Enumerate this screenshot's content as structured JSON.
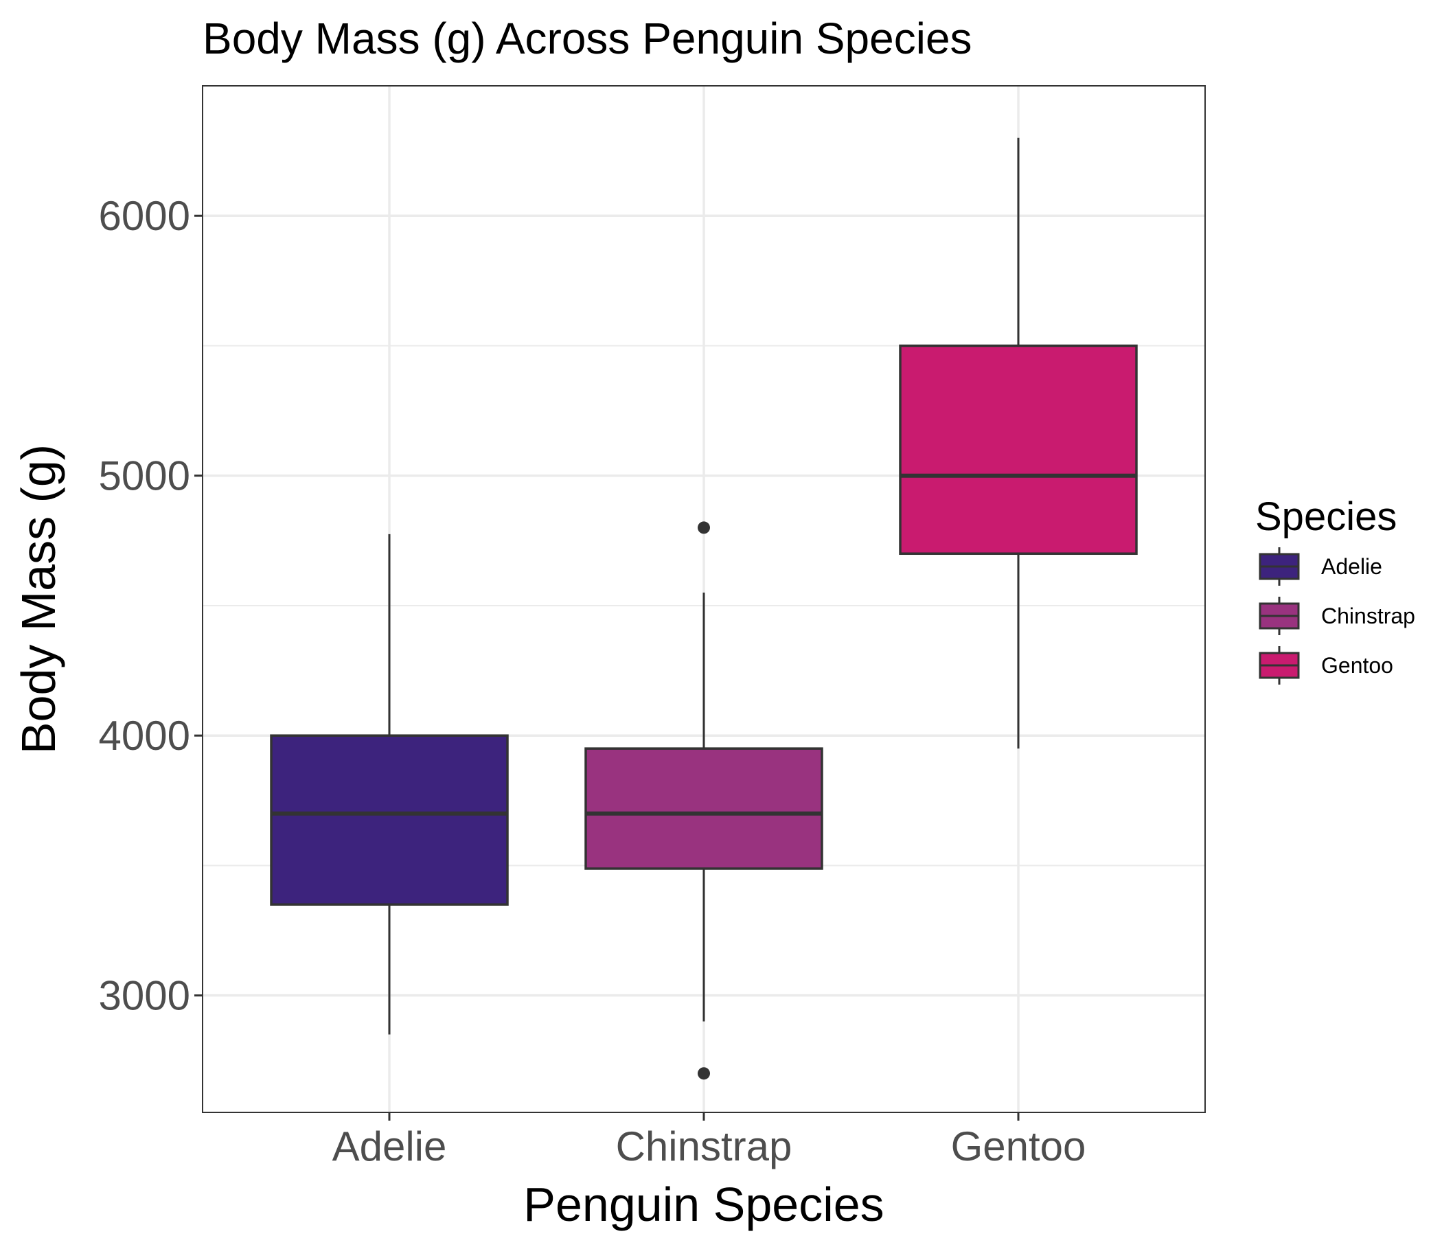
{
  "chart_data": {
    "type": "box",
    "title": "Body Mass (g) Across Penguin Species",
    "xlabel": "Penguin Species",
    "ylabel": "Body Mass (g)",
    "ylim": [
      2550,
      6500
    ],
    "yticks": [
      3000,
      4000,
      5000,
      6000
    ],
    "grid": true,
    "legend": {
      "title": "Species",
      "position": "right",
      "entries": [
        "Adelie",
        "Chinstrap",
        "Gentoo"
      ]
    },
    "categories": [
      "Adelie",
      "Chinstrap",
      "Gentoo"
    ],
    "series": [
      {
        "name": "Adelie",
        "color": "#3d237d",
        "whisker_low": 2850,
        "q1": 3350,
        "median": 3700,
        "q3": 4000,
        "whisker_high": 4775,
        "outliers": []
      },
      {
        "name": "Chinstrap",
        "color": "#99337f",
        "whisker_low": 2900,
        "q1": 3488,
        "median": 3700,
        "q3": 3950,
        "whisker_high": 4550,
        "outliers": [
          2700,
          4800
        ]
      },
      {
        "name": "Gentoo",
        "color": "#c91b6f",
        "whisker_low": 3950,
        "q1": 4700,
        "median": 5000,
        "q3": 5500,
        "whisker_high": 6300,
        "outliers": []
      }
    ]
  }
}
